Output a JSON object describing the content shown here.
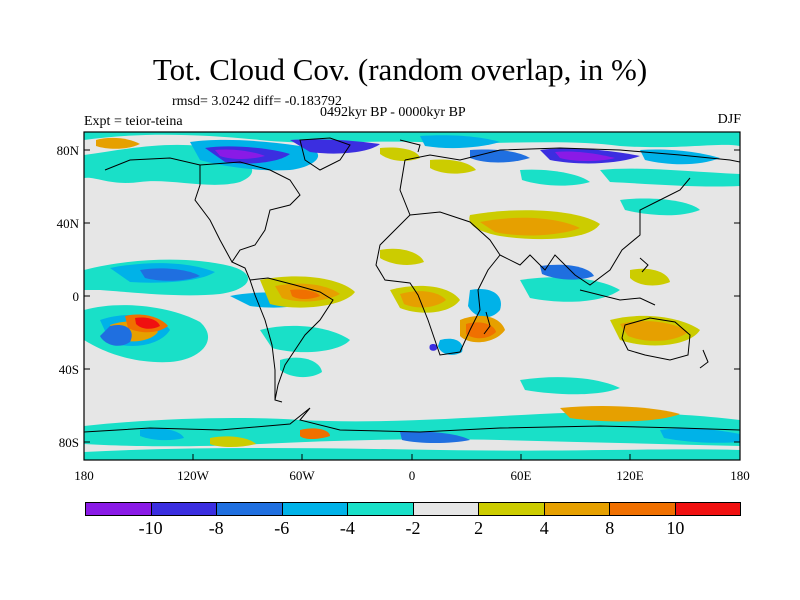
{
  "title": "Tot. Cloud Cov. (random overlap, in %)",
  "stats": "rmsd= 3.0242 diff= -0.183792",
  "period": "0492kyr BP - 0000kyr BP",
  "expt": "Expt = teior-teina",
  "season": "DJF",
  "lon_ticks": [
    "180",
    "120W",
    "60W",
    "0",
    "60E",
    "120E",
    "180"
  ],
  "lat_ticks": [
    "80N",
    "40N",
    "0",
    "40S",
    "80S"
  ],
  "colorbar": {
    "colors": [
      "#8a1ae6",
      "#3b2ee0",
      "#1f6fe0",
      "#00b2e8",
      "#19e0c8",
      "#e6e6e6",
      "#cccc00",
      "#e6a000",
      "#f07000",
      "#f01010"
    ],
    "labels": [
      "-10",
      "-8",
      "-6",
      "-4",
      "-2",
      "2",
      "4",
      "8",
      "10"
    ]
  }
}
